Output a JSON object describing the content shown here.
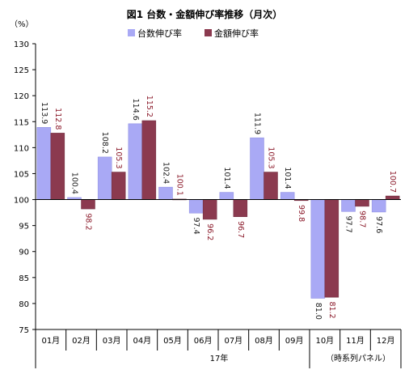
{
  "chart_data": {
    "type": "bar",
    "title": "図1 台数・金額伸び率推移（月次）",
    "ylabel": "（%）",
    "ylim": [
      75,
      130
    ],
    "yticks": [
      75,
      80,
      85,
      90,
      95,
      100,
      105,
      110,
      115,
      120,
      125,
      130
    ],
    "baseline": 100,
    "categories": [
      "01月",
      "02月",
      "03月",
      "04月",
      "05月",
      "06月",
      "07月",
      "08月",
      "09月",
      "10月",
      "11月",
      "12月"
    ],
    "series": [
      {
        "name": "台数伸び率",
        "color": "#a9a9f5",
        "values": [
          113.9,
          100.4,
          108.2,
          114.6,
          102.4,
          97.4,
          101.4,
          111.9,
          101.4,
          81.0,
          97.7,
          97.6
        ],
        "labels": [
          "113.9",
          "100.4",
          "108.2",
          "114.6",
          "102.4",
          "97.4",
          "101.4",
          "111.9",
          "101.4",
          "81.0",
          "97.7",
          "97.6"
        ]
      },
      {
        "name": "金額伸び率",
        "color": "#8b3a4f",
        "values": [
          112.8,
          98.2,
          105.3,
          115.2,
          100.1,
          96.2,
          96.7,
          105.3,
          99.8,
          81.2,
          98.7,
          100.7
        ],
        "labels": [
          "112.8",
          "98.2",
          "105.3",
          "115.2",
          "100.1",
          "96.2",
          "96.7",
          "105.3",
          "99.8",
          "81.2",
          "98.7",
          "100.7"
        ]
      }
    ],
    "xgroup_label": "17年",
    "note": "（時系列パネル）",
    "grid": false,
    "legend": "top"
  }
}
